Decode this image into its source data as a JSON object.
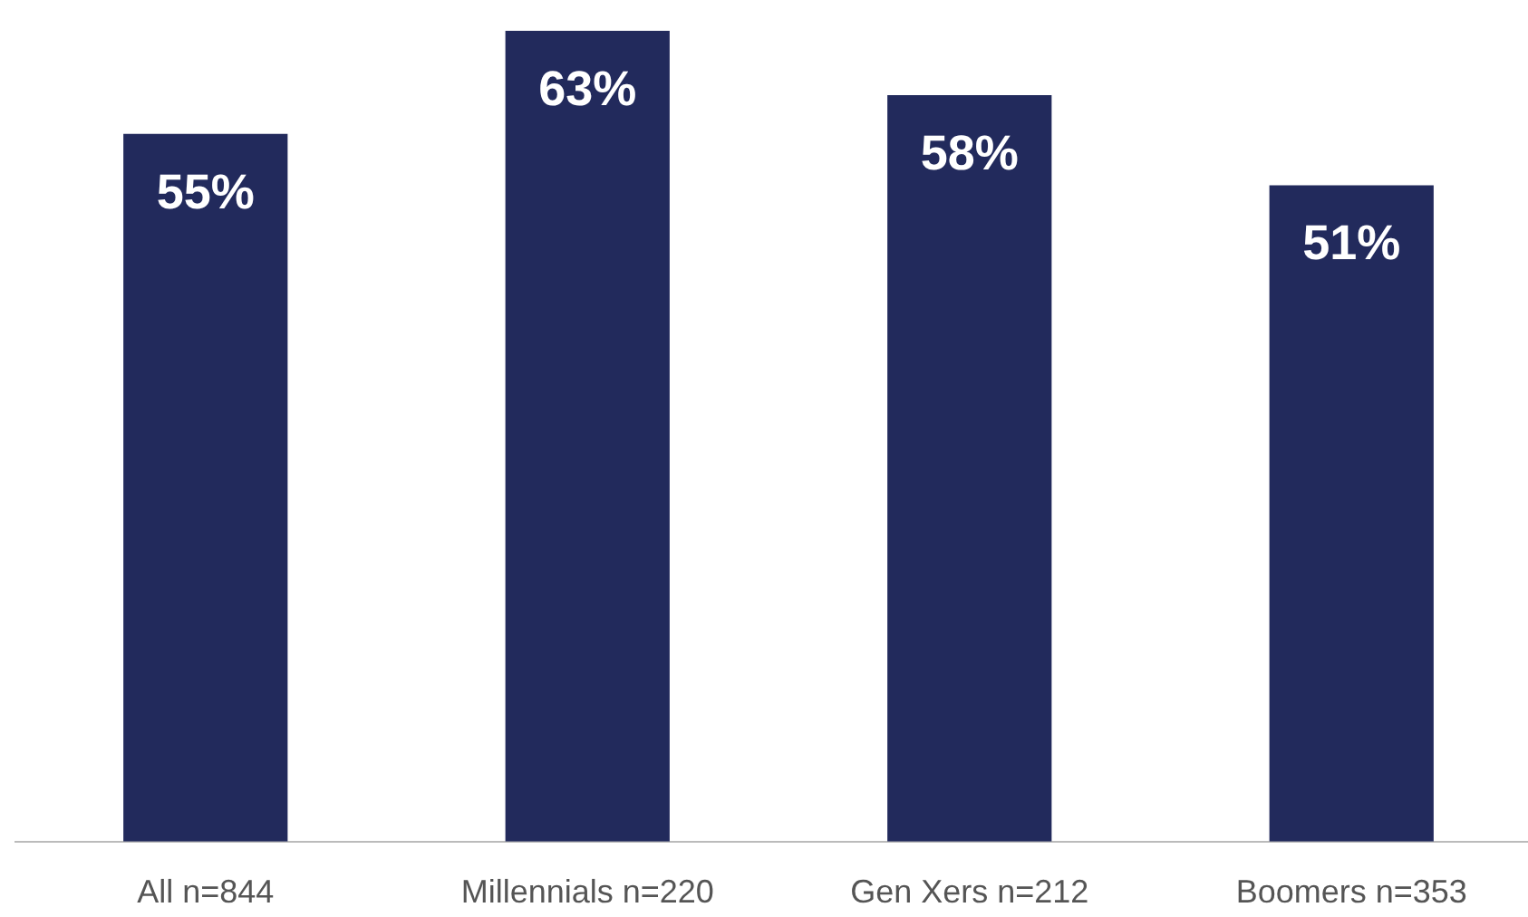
{
  "chart_data": {
    "type": "bar",
    "categories": [
      "All n=844",
      "Millennials n=220",
      "Gen Xers n=212",
      "Boomers n=353"
    ],
    "values": [
      55,
      63,
      58,
      51
    ],
    "value_labels": [
      "55%",
      "63%",
      "58%",
      "51%"
    ],
    "color": "#222a5c"
  }
}
